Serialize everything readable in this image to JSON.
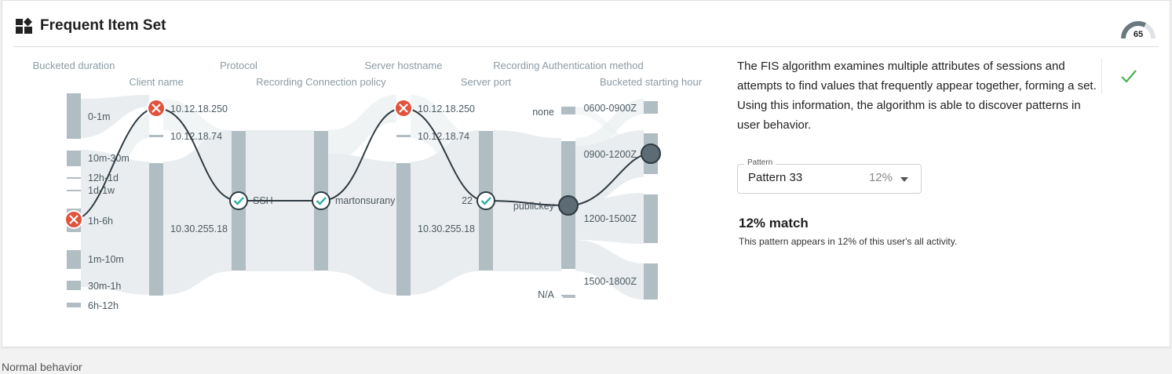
{
  "header": {
    "title": "Frequent Item Set",
    "score": "65",
    "score_value": 65
  },
  "columns": {
    "bucketed_duration": "Bucketed duration",
    "client_name": "Client name",
    "protocol": "Protocol",
    "connection_policy": "Recording Connection policy",
    "server_hostname": "Server hostname",
    "server_port": "Server port",
    "auth_method": "Recording Authentication method",
    "starting_hour": "Bucketed starting hour"
  },
  "nodes": {
    "duration": [
      "0-1m",
      "10m-30m",
      "12h-1d",
      "1d-1w",
      "1h-6h",
      "1m-10m",
      "30m-1h",
      "6h-12h"
    ],
    "client": [
      "10.12.18.250",
      "10.12.18.74",
      "10.30.255.18"
    ],
    "protocol": "SSH",
    "policy": "martonsurany",
    "hostname": [
      "10.12.18.250",
      "10.12.18.74",
      "10.30.255.18"
    ],
    "port": "22",
    "auth": [
      "none",
      "publickey",
      "N/A"
    ],
    "hour": [
      "0600-0900Z",
      "0900-1200Z",
      "1200-1500Z",
      "1500-1800Z"
    ]
  },
  "path_status": {
    "duration": "mismatch",
    "client": "mismatch",
    "protocol": "match",
    "policy": "match",
    "hostname": "mismatch",
    "port": "match",
    "auth": "neutral",
    "hour": "neutral"
  },
  "info": {
    "description": "The FIS algorithm examines multiple attributes of sessions and attempts to find values that frequently appear together, forming a set. Using this information, the algorithm is able to discover patterns in user behavior.",
    "pattern_label": "Pattern",
    "pattern_value": "Pattern 33",
    "pattern_percent": "12%",
    "match_title": "12% match",
    "match_desc": "This pattern appears in 12% of this user's all activity."
  },
  "footer": {
    "label": "Normal behavior"
  },
  "colors": {
    "bar": "#b0bdc3",
    "flow": "#e8ecee",
    "path": "#2f3b42",
    "mismatch": "#e0533d",
    "match": "#2bb3a3",
    "neutral": "#5c6b74",
    "approve": "#4caf50"
  }
}
